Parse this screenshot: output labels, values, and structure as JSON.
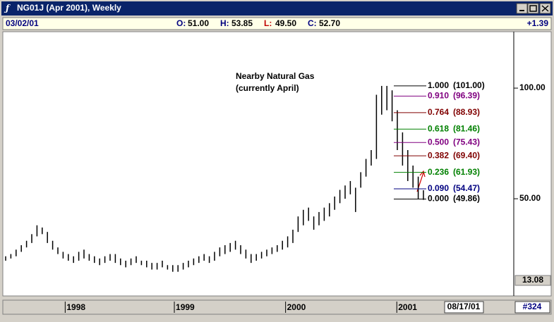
{
  "window": {
    "title": "NG01J (Apr 2001), Weekly"
  },
  "info": {
    "date": "03/02/01",
    "fields": [
      {
        "label": "O:",
        "value": "51.00",
        "color": "#000080"
      },
      {
        "label": "H:",
        "value": "53.85",
        "color": "#000080"
      },
      {
        "label": "L:",
        "value": "49.50",
        "color": "#c00000"
      },
      {
        "label": "C:",
        "value": "52.70",
        "color": "#000080"
      }
    ],
    "change": "+1.39"
  },
  "footer": {
    "date": "08/17/01",
    "count": "#324"
  },
  "chart_data": {
    "type": "ohlc",
    "annotation": [
      "Nearby Natural Gas",
      "(currently April)"
    ],
    "low": [
      22,
      23,
      24,
      26,
      28,
      30,
      33,
      34,
      30,
      27,
      25,
      23,
      22,
      21,
      22,
      23,
      22,
      21,
      20,
      21,
      22,
      21,
      20,
      19,
      20,
      21,
      20,
      19,
      18,
      18,
      19,
      18,
      17,
      17,
      18,
      19,
      20,
      21,
      22,
      21,
      22,
      24,
      25,
      26,
      27,
      25,
      23,
      21,
      22,
      23,
      24,
      25,
      26,
      27,
      28,
      30,
      35,
      38,
      40,
      36,
      38,
      40,
      42,
      45,
      48,
      50,
      52,
      44,
      55,
      60,
      65,
      68,
      88,
      90,
      85,
      72,
      65,
      58,
      55,
      50,
      49.5
    ],
    "high": [
      24,
      25,
      27,
      29,
      31,
      34,
      38,
      37,
      35,
      31,
      28,
      26,
      25,
      24,
      26,
      27,
      25,
      24,
      23,
      24,
      25,
      25,
      23,
      22,
      23,
      24,
      22,
      22,
      21,
      21,
      22,
      20,
      20,
      20,
      21,
      22,
      23,
      24,
      25,
      24,
      26,
      28,
      29,
      30,
      31,
      29,
      27,
      25,
      25,
      26,
      27,
      28,
      29,
      31,
      33,
      36,
      42,
      45,
      46,
      42,
      44,
      46,
      48,
      51,
      54,
      56,
      58,
      55,
      62,
      68,
      72,
      97,
      101,
      101,
      99,
      90,
      80,
      72,
      65,
      60,
      53.85
    ],
    "color": "#000000",
    "ylim": [
      13.08,
      125.5
    ],
    "yticks": [
      {
        "value": 100,
        "label": "100.00"
      },
      {
        "value": 50,
        "label": "50.00"
      },
      13.08
    ],
    "xticks": [
      {
        "value": 11.4,
        "label": "1998"
      },
      {
        "value": 32.3,
        "label": "1999"
      },
      {
        "value": 53.6,
        "label": "2000"
      },
      {
        "value": 74.9,
        "label": "2001"
      }
    ],
    "levels": [
      {
        "ratio": "1.000",
        "price": 101,
        "price_label": "(101.00)",
        "color": "#000000"
      },
      {
        "ratio": "0.910",
        "price": 96.39,
        "price_label": "(96.39)",
        "color": "#800080"
      },
      {
        "ratio": "0.764",
        "price": 88.93,
        "price_label": "(88.93)",
        "color": "#800000"
      },
      {
        "ratio": "0.618",
        "price": 81.46,
        "price_label": "(81.46)",
        "color": "#008000"
      },
      {
        "ratio": "0.500",
        "price": 75.43,
        "price_label": "(75.43)",
        "color": "#800080"
      },
      {
        "ratio": "0.382",
        "price": 69.4,
        "price_label": "(69.40)",
        "color": "#800000"
      },
      {
        "ratio": "0.236",
        "price": 61.93,
        "price_label": "(61.93)",
        "color": "#008000"
      },
      {
        "ratio": "0.090",
        "price": 54.47,
        "price_label": "(54.47)",
        "color": "#000080"
      },
      {
        "ratio": "0.000",
        "price": 49.86,
        "price_label": "(49.86)",
        "color": "#000000"
      }
    ]
  }
}
